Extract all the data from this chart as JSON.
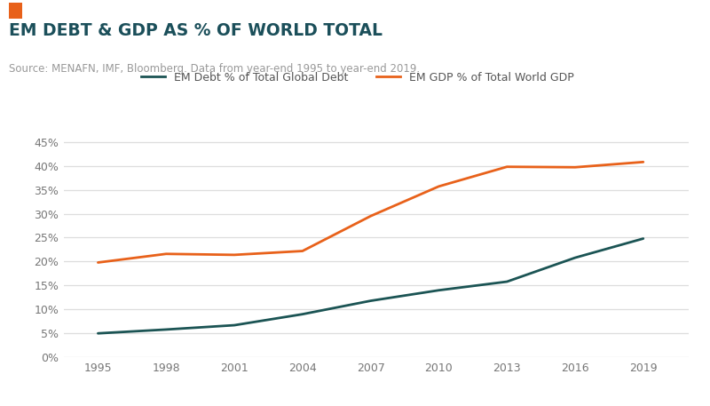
{
  "title": "EM DEBT & GDP AS % OF WORLD TOTAL",
  "subtitle": "Source: MENAFN, IMF, Bloomberg. Data from year-end 1995 to year-end 2019.",
  "title_color": "#1b4f5a",
  "subtitle_color": "#999999",
  "orange_rect_color": "#e8611a",
  "years": [
    1995,
    1998,
    2001,
    2004,
    2007,
    2010,
    2013,
    2016,
    2019
  ],
  "em_debt": [
    0.05,
    0.058,
    0.067,
    0.09,
    0.118,
    0.14,
    0.158,
    0.208,
    0.248
  ],
  "em_gdp": [
    0.198,
    0.216,
    0.214,
    0.222,
    0.295,
    0.357,
    0.398,
    0.397,
    0.408
  ],
  "debt_color": "#1b5454",
  "gdp_color": "#e8611a",
  "debt_label": "EM Debt % of Total Global Debt",
  "gdp_label": "EM GDP % of Total World GDP",
  "ylim": [
    0,
    0.475
  ],
  "yticks": [
    0,
    0.05,
    0.1,
    0.15,
    0.2,
    0.25,
    0.3,
    0.35,
    0.4,
    0.45
  ],
  "fig_bg": "#ffffff",
  "plot_bg": "#ffffff",
  "grid_color": "#dddddd"
}
